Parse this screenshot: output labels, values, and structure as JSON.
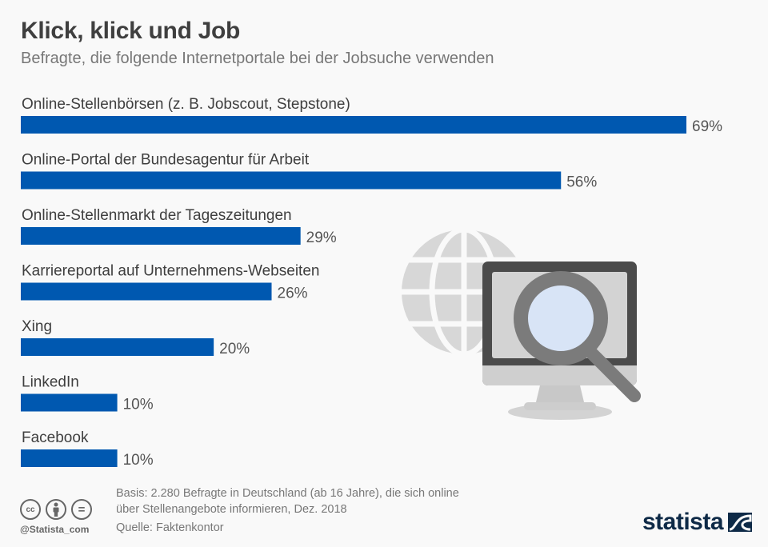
{
  "header": {
    "title": "Klick, klick und Job",
    "subtitle": "Befragte, die folgende Internetportale bei der Jobsuche verwenden"
  },
  "colors": {
    "bar": "#0058b0",
    "brand": "#0e2a47"
  },
  "chart_data": {
    "type": "bar",
    "orientation": "horizontal",
    "title": "Klick, klick und Job",
    "subtitle": "Befragte, die folgende Internetportale bei der Jobsuche verwenden",
    "xlabel": "",
    "ylabel": "",
    "unit": "%",
    "grid": false,
    "legend": "none",
    "xlim": [
      0,
      69
    ],
    "categories": [
      "Online-Stellenbörsen (z. B. Jobscout, Stepstone)",
      "Online-Portal der Bundesagentur für Arbeit",
      "Online-Stellenmarkt der Tageszeitungen",
      "Karriereportal auf Unternehmens-Webseiten",
      "Xing",
      "LinkedIn",
      "Facebook"
    ],
    "values": [
      69,
      56,
      29,
      26,
      20,
      10,
      10
    ],
    "value_labels": [
      "69%",
      "56%",
      "29%",
      "26%",
      "20%",
      "10%",
      "10%"
    ]
  },
  "illustration": {
    "icons": [
      "globe-icon",
      "monitor-icon",
      "magnifier-icon"
    ]
  },
  "footer": {
    "note_line1": "Basis: 2.280 Befragte in Deutschland (ab 16 Jahre), die sich online",
    "note_line2": "über Stellenangebote informieren, Dez. 2018",
    "source": "Quelle: Faktenkontor",
    "license_icons": [
      "cc",
      "by",
      "nd"
    ],
    "cc_label": "cc",
    "nd_label": "=",
    "handle": "@Statista_com",
    "brand": "statista"
  }
}
